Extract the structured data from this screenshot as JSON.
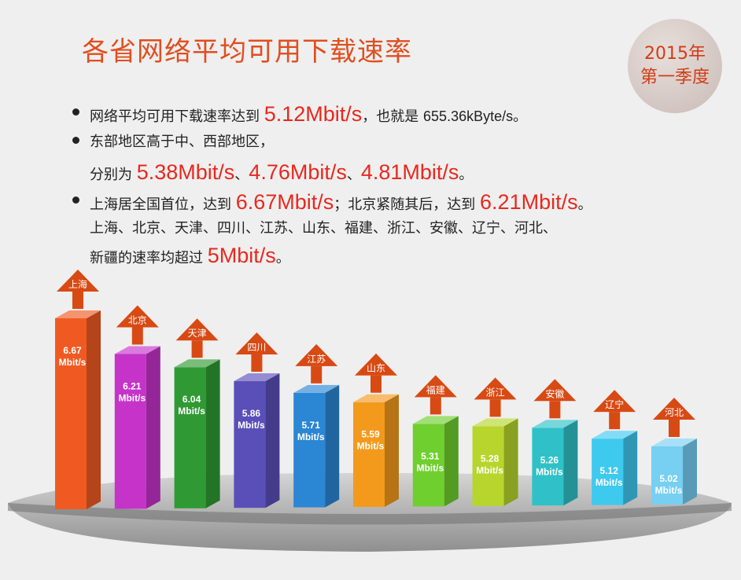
{
  "title": "各省网络平均可用下载速率",
  "badge": {
    "line1": "2015年",
    "line2": "第一季度"
  },
  "bullets": {
    "b1": {
      "t1": "网络平均可用下载速率达到 ",
      "v1": "5.12Mbit/s",
      "t2": "，也就是 ",
      "t3": "655.36kByte/s",
      "t4": "。"
    },
    "b2": {
      "line1": "东部地区高于中、西部地区，",
      "t1": "分别为 ",
      "v1": "5.38Mbit/s",
      "sep1": "、",
      "v2": "4.76Mbit/s",
      "sep2": "、",
      "v3": "4.81Mbit/s",
      "t_end": "。"
    },
    "b3": {
      "t1": "上海居全国首位，达到 ",
      "v1": "6.67Mbit/s",
      "t2": "；北京紧随其后，达到 ",
      "v2": "6.21Mbit/s",
      "t3": "。",
      "line2": "上海、北京、天津、四川、江苏、山东、福建、浙江、安徽、辽宁、河北、",
      "line3a": "新疆的速率均超过 ",
      "v3": "5Mbit/s",
      "line3b": "。"
    }
  },
  "colors": {
    "accent": "#e04e1f",
    "bars": [
      "#f05a22",
      "#c533c9",
      "#2f9a33",
      "#5a4fb8",
      "#2b86d4",
      "#f39a1d",
      "#6fcf2e",
      "#b7d52c",
      "#2fc1c7",
      "#3ec9ef",
      "#77cff2"
    ],
    "arrow": "#d84a14"
  },
  "chart_data": {
    "type": "bar",
    "categories": [
      "上海",
      "北京",
      "天津",
      "四川",
      "江苏",
      "山东",
      "福建",
      "浙江",
      "安徽",
      "辽宁",
      "河北"
    ],
    "values": [
      6.67,
      6.21,
      6.04,
      5.86,
      5.71,
      5.59,
      5.31,
      5.28,
      5.26,
      5.12,
      5.02
    ],
    "unit": "Mbit/s",
    "value_labels": [
      "6.67",
      "6.21",
      "6.04",
      "5.86",
      "5.71",
      "5.59",
      "5.31",
      "5.28",
      "5.26",
      "5.12",
      "5.02"
    ]
  }
}
